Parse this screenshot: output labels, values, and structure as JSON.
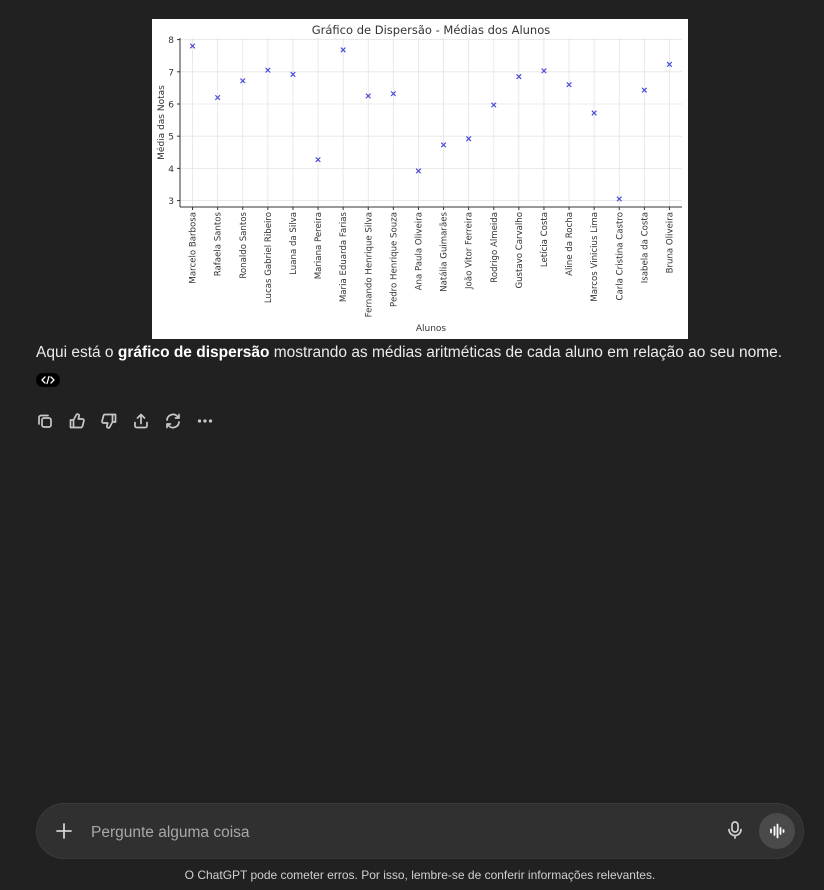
{
  "chart_data": {
    "type": "scatter",
    "title": "Gráfico de Dispersão - Médias dos Alunos",
    "xlabel": "Alunos",
    "ylabel": "Média das Notas",
    "ylim": [
      2.8,
      8.05
    ],
    "yticks": [
      3,
      4,
      5,
      6,
      7,
      8
    ],
    "grid": true,
    "marker": "x",
    "color": "#4b4bd9",
    "categories": [
      "Marcelo Barbosa",
      "Rafaela Santos",
      "Ronaldo Santos",
      "Lucas Gabriel Ribeiro",
      "Luana da Silva",
      "Mariana Pereira",
      "Maria Eduarda Farias",
      "Fernando Henrique Silva",
      "Pedro Henrique Souza",
      "Ana Paula Oliveira",
      "Natália Guimarães",
      "João Vitor Ferreira",
      "Rodrigo Almeida",
      "Gustavo Carvalho",
      "Letícia Costa",
      "Aline da Rocha",
      "Marcos Vinicius Lima",
      "Carla Cristina Castro",
      "Isabela da Costa",
      "Bruna Oliveira"
    ],
    "values": [
      7.8,
      6.2,
      6.72,
      7.05,
      6.92,
      4.27,
      7.68,
      6.25,
      6.32,
      3.92,
      4.73,
      4.92,
      5.97,
      6.85,
      7.03,
      6.6,
      5.72,
      3.05,
      6.43,
      7.23
    ]
  },
  "message": {
    "prefix": "Aqui está o ",
    "bold": "gráfico de dispersão",
    "suffix": " mostrando as médias aritméticas de cada aluno em relação ao seu nome."
  },
  "actions": [
    {
      "name": "copy-icon"
    },
    {
      "name": "thumbs-up-icon"
    },
    {
      "name": "thumbs-down-icon"
    },
    {
      "name": "share-icon"
    },
    {
      "name": "regenerate-icon"
    },
    {
      "name": "more-icon"
    }
  ],
  "composer": {
    "placeholder": "Pergunte alguma coisa"
  },
  "footer": {
    "disclaimer": "O ChatGPT pode cometer erros. Por isso, lembre-se de conferir informações relevantes."
  }
}
